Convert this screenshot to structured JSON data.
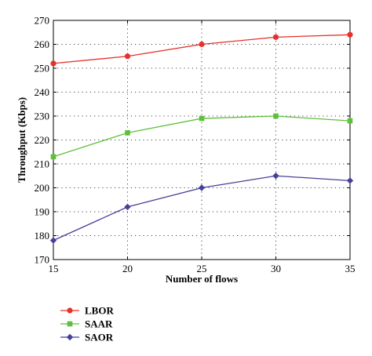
{
  "chart_data": {
    "type": "line",
    "title": "",
    "xlabel": "Number of flows",
    "ylabel": "Throughput (Kbps)",
    "x": [
      15,
      20,
      25,
      30,
      35
    ],
    "xlim": [
      15,
      35
    ],
    "ylim": [
      170,
      270
    ],
    "xticks": [
      "15",
      "20",
      "25",
      "30",
      "35"
    ],
    "yticks": [
      "170",
      "180",
      "190",
      "200",
      "210",
      "220",
      "230",
      "240",
      "250",
      "260",
      "270"
    ],
    "grid": true,
    "legend_position": "bottom-left",
    "series": [
      {
        "name": "LBOR",
        "values": [
          252,
          255,
          260,
          263,
          264
        ],
        "color": "#e8312a",
        "marker": "circle"
      },
      {
        "name": "SAAR",
        "values": [
          213,
          223,
          229,
          230,
          228
        ],
        "color": "#5cc038",
        "marker": "square"
      },
      {
        "name": "SAOR",
        "values": [
          178,
          192,
          200,
          205,
          203
        ],
        "color": "#46409a",
        "marker": "diamond"
      }
    ]
  }
}
